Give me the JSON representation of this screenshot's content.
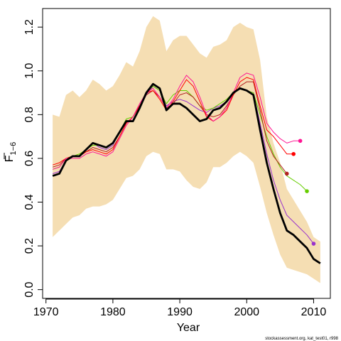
{
  "chart_data": {
    "type": "line",
    "xlabel": "Year",
    "ylabel_main": "F",
    "ylabel_sub": "1−6",
    "footer_text": "stockassessment.org, kat_test01, r998",
    "xlim": [
      1969.5,
      2012.5
    ],
    "ylim": [
      -0.04,
      1.285
    ],
    "xticks": [
      1970,
      1980,
      1990,
      2000,
      2010
    ],
    "yticks": [
      0.0,
      0.2,
      0.4,
      0.6,
      0.8,
      1.0,
      1.2
    ],
    "ytick_labels": [
      "0.0",
      "0.2",
      "0.4",
      "0.6",
      "0.8",
      "1.0",
      "1.2"
    ],
    "band": {
      "color": "#f5deb3",
      "years": [
        1971,
        1972,
        1973,
        1974,
        1975,
        1976,
        1977,
        1978,
        1979,
        1980,
        1981,
        1982,
        1983,
        1984,
        1985,
        1986,
        1987,
        1988,
        1989,
        1990,
        1991,
        1992,
        1993,
        1994,
        1995,
        1996,
        1997,
        1998,
        1999,
        2000,
        2001,
        2002,
        2003,
        2004,
        2005,
        2006,
        2007,
        2008,
        2009,
        2010,
        2011
      ],
      "upper": [
        0.8,
        0.79,
        0.89,
        0.91,
        0.88,
        0.91,
        0.96,
        0.94,
        0.91,
        0.93,
        0.98,
        1.04,
        1.02,
        1.09,
        1.2,
        1.25,
        1.23,
        1.09,
        1.14,
        1.16,
        1.16,
        1.12,
        1.08,
        1.06,
        1.11,
        1.12,
        1.14,
        1.2,
        1.22,
        1.2,
        1.19,
        1.05,
        0.79,
        0.67,
        0.58,
        0.46,
        0.41,
        0.36,
        0.31,
        0.24,
        0.22
      ],
      "lower": [
        0.24,
        0.27,
        0.3,
        0.33,
        0.34,
        0.37,
        0.38,
        0.38,
        0.39,
        0.41,
        0.46,
        0.51,
        0.52,
        0.55,
        0.61,
        0.63,
        0.62,
        0.55,
        0.55,
        0.54,
        0.5,
        0.47,
        0.46,
        0.49,
        0.56,
        0.56,
        0.58,
        0.61,
        0.63,
        0.61,
        0.58,
        0.47,
        0.35,
        0.25,
        0.16,
        0.1,
        0.09,
        0.08,
        0.07,
        0.05,
        0.03
      ]
    },
    "series": [
      {
        "color": "#000000",
        "width": 2.8,
        "years": [
          1971,
          1972,
          1973,
          1974,
          1975,
          1976,
          1977,
          1978,
          1979,
          1980,
          1981,
          1982,
          1983,
          1984,
          1985,
          1986,
          1987,
          1988,
          1989,
          1990,
          1991,
          1992,
          1993,
          1994,
          1995,
          1996,
          1997,
          1998,
          1999,
          2000,
          2001,
          2002,
          2003,
          2004,
          2005,
          2006,
          2007,
          2008,
          2009,
          2010,
          2011
        ],
        "values": [
          0.52,
          0.53,
          0.59,
          0.61,
          0.61,
          0.64,
          0.67,
          0.66,
          0.65,
          0.67,
          0.72,
          0.77,
          0.77,
          0.83,
          0.9,
          0.94,
          0.92,
          0.82,
          0.85,
          0.85,
          0.83,
          0.8,
          0.77,
          0.78,
          0.82,
          0.83,
          0.86,
          0.9,
          0.92,
          0.91,
          0.89,
          0.73,
          0.58,
          0.46,
          0.35,
          0.27,
          0.25,
          0.22,
          0.19,
          0.14,
          0.12
        ],
        "end_marker": false
      },
      {
        "color": "#9932cc",
        "width": 1.0,
        "years": [
          1971,
          1972,
          1973,
          1974,
          1975,
          1976,
          1977,
          1978,
          1979,
          1980,
          1981,
          1982,
          1983,
          1984,
          1985,
          1986,
          1987,
          1988,
          1989,
          1990,
          1991,
          1992,
          1993,
          1994,
          1995,
          1996,
          1997,
          1998,
          1999,
          2000,
          2001,
          2002,
          2003,
          2004,
          2005,
          2006,
          2007,
          2008,
          2009,
          2010
        ],
        "values": [
          0.53,
          0.54,
          0.59,
          0.61,
          0.61,
          0.64,
          0.67,
          0.65,
          0.64,
          0.66,
          0.72,
          0.77,
          0.77,
          0.83,
          0.89,
          0.93,
          0.91,
          0.84,
          0.86,
          0.87,
          0.86,
          0.84,
          0.82,
          0.81,
          0.83,
          0.84,
          0.86,
          0.9,
          0.92,
          0.91,
          0.9,
          0.76,
          0.62,
          0.5,
          0.41,
          0.34,
          0.31,
          0.28,
          0.25,
          0.21
        ],
        "end_marker": true
      },
      {
        "color": "#66cd00",
        "width": 1.0,
        "years": [
          1971,
          1972,
          1973,
          1974,
          1975,
          1976,
          1977,
          1978,
          1979,
          1980,
          1981,
          1982,
          1983,
          1984,
          1985,
          1986,
          1987,
          1988,
          1989,
          1990,
          1991,
          1992,
          1993,
          1994,
          1995,
          1996,
          1997,
          1998,
          1999,
          2000,
          2001,
          2002,
          2003,
          2004,
          2005,
          2006,
          2007,
          2008,
          2009
        ],
        "values": [
          0.55,
          0.56,
          0.6,
          0.61,
          0.62,
          0.64,
          0.66,
          0.66,
          0.65,
          0.67,
          0.72,
          0.78,
          0.79,
          0.84,
          0.9,
          0.93,
          0.91,
          0.85,
          0.89,
          0.91,
          0.91,
          0.88,
          0.84,
          0.82,
          0.83,
          0.85,
          0.87,
          0.9,
          0.92,
          0.91,
          0.9,
          0.8,
          0.7,
          0.62,
          0.56,
          0.52,
          0.5,
          0.48,
          0.45
        ],
        "end_marker": true
      },
      {
        "color": "#b22222",
        "width": 1.0,
        "years": [
          1971,
          1972,
          1973,
          1974,
          1975,
          1976,
          1977,
          1978,
          1979,
          1980,
          1981,
          1982,
          1983,
          1984,
          1985,
          1986,
          1987,
          1988,
          1989,
          1990,
          1991,
          1992,
          1993,
          1994,
          1995,
          1996,
          1997,
          1998,
          1999,
          2000,
          2001,
          2002,
          2003,
          2004,
          2005,
          2006
        ],
        "values": [
          0.56,
          0.57,
          0.6,
          0.61,
          0.61,
          0.63,
          0.65,
          0.64,
          0.63,
          0.65,
          0.7,
          0.76,
          0.79,
          0.84,
          0.89,
          0.91,
          0.88,
          0.83,
          0.85,
          0.89,
          0.9,
          0.88,
          0.84,
          0.8,
          0.79,
          0.8,
          0.84,
          0.89,
          0.93,
          0.95,
          0.95,
          0.82,
          0.68,
          0.61,
          0.57,
          0.53
        ],
        "end_marker": true
      },
      {
        "color": "#ff0000",
        "width": 1.0,
        "years": [
          1971,
          1972,
          1973,
          1974,
          1975,
          1976,
          1977,
          1978,
          1979,
          1980,
          1981,
          1982,
          1983,
          1984,
          1985,
          1986,
          1987,
          1988,
          1989,
          1990,
          1991,
          1992,
          1993,
          1994,
          1995,
          1996,
          1997,
          1998,
          1999,
          2000,
          2001,
          2002,
          2003,
          2004,
          2005,
          2006,
          2007
        ],
        "values": [
          0.57,
          0.58,
          0.6,
          0.61,
          0.61,
          0.63,
          0.64,
          0.63,
          0.62,
          0.64,
          0.7,
          0.76,
          0.79,
          0.84,
          0.9,
          0.91,
          0.87,
          0.82,
          0.86,
          0.91,
          0.96,
          0.93,
          0.86,
          0.79,
          0.77,
          0.79,
          0.82,
          0.89,
          0.95,
          0.97,
          0.96,
          0.84,
          0.73,
          0.7,
          0.66,
          0.62,
          0.62
        ],
        "end_marker": true
      },
      {
        "color": "#ff1493",
        "width": 1.0,
        "years": [
          1971,
          1972,
          1973,
          1974,
          1975,
          1976,
          1977,
          1978,
          1979,
          1980,
          1981,
          1982,
          1983,
          1984,
          1985,
          1986,
          1987,
          1988,
          1989,
          1990,
          1991,
          1992,
          1993,
          1994,
          1995,
          1996,
          1997,
          1998,
          1999,
          2000,
          2001,
          2002,
          2003,
          2004,
          2005,
          2006,
          2007,
          2008
        ],
        "values": [
          0.55,
          0.56,
          0.6,
          0.6,
          0.6,
          0.62,
          0.63,
          0.62,
          0.61,
          0.63,
          0.69,
          0.75,
          0.79,
          0.85,
          0.9,
          0.92,
          0.88,
          0.83,
          0.87,
          0.93,
          0.98,
          0.95,
          0.88,
          0.8,
          0.77,
          0.79,
          0.83,
          0.9,
          0.97,
          0.99,
          0.98,
          0.88,
          0.76,
          0.72,
          0.69,
          0.67,
          0.68,
          0.68
        ],
        "end_marker": true
      }
    ]
  }
}
